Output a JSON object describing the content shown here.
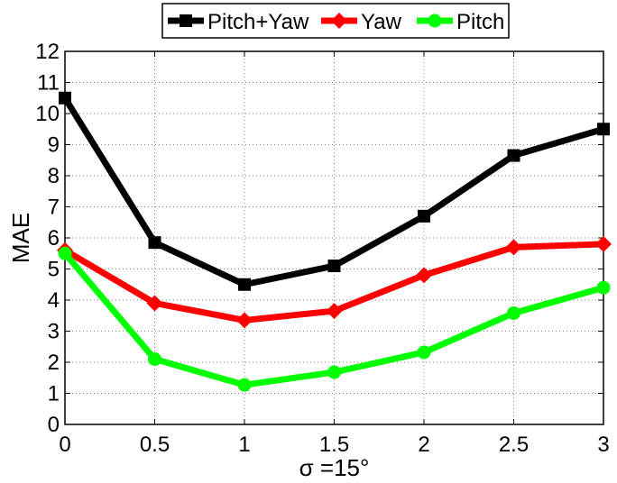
{
  "chart_data": {
    "type": "line",
    "title": "",
    "xlabel": "σ =15°",
    "ylabel": "MAE",
    "x": [
      0,
      0.5,
      1,
      1.5,
      2,
      2.5,
      3
    ],
    "xticks": [
      "0",
      "0.5",
      "1",
      "1.5",
      "2",
      "2.5",
      "3"
    ],
    "yticks": [
      "0",
      "1",
      "2",
      "3",
      "4",
      "5",
      "6",
      "7",
      "8",
      "9",
      "10",
      "11",
      "12"
    ],
    "xlim": [
      0,
      3
    ],
    "ylim": [
      0,
      12
    ],
    "grid": true,
    "legend_position": "top-center",
    "series": [
      {
        "name": "Pitch+Yaw",
        "color": "#000000",
        "marker": "square",
        "values": [
          10.5,
          5.85,
          4.5,
          5.1,
          6.7,
          8.65,
          9.5
        ]
      },
      {
        "name": "Yaw",
        "color": "#ff0000",
        "marker": "diamond",
        "values": [
          5.6,
          3.9,
          3.35,
          3.65,
          4.8,
          5.7,
          5.8
        ]
      },
      {
        "name": "Pitch",
        "color": "#00ff00",
        "marker": "circle",
        "values": [
          5.5,
          2.1,
          1.27,
          1.68,
          2.32,
          3.58,
          4.4
        ]
      }
    ]
  }
}
